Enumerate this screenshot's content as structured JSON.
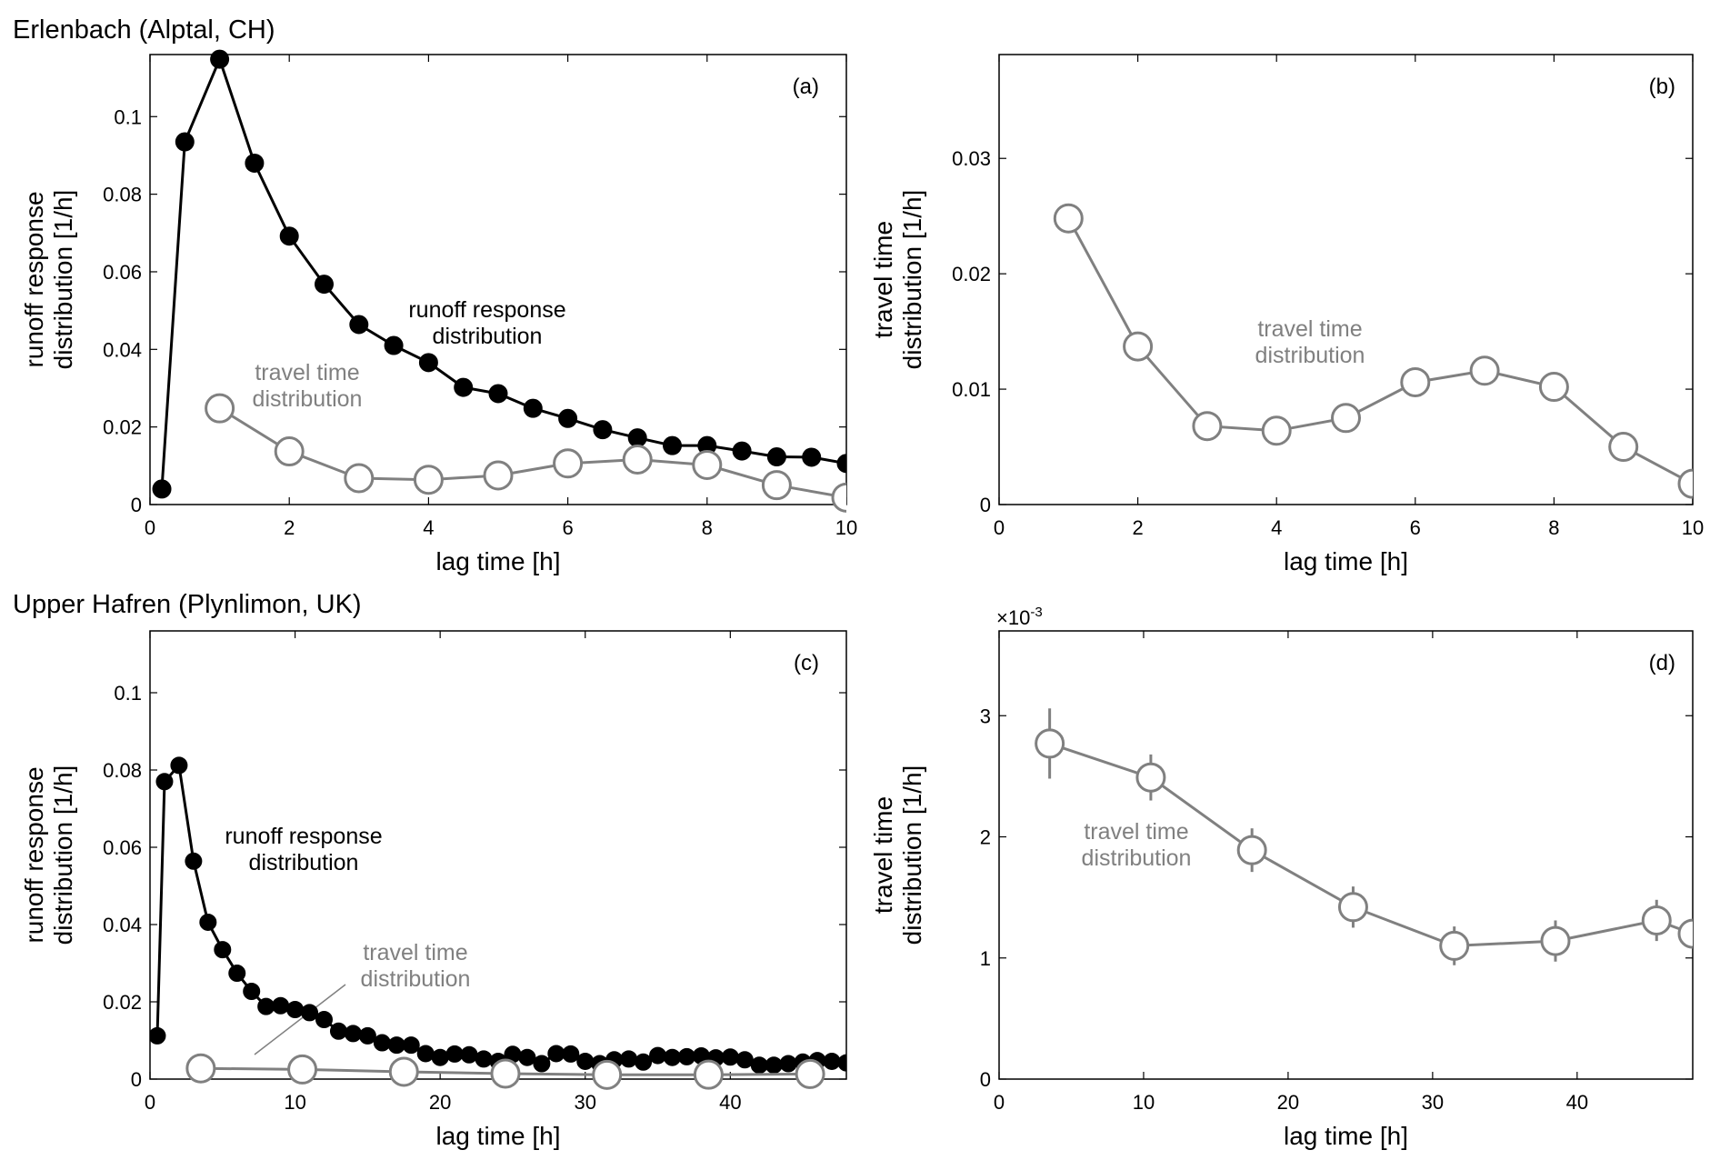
{
  "figure": {
    "section_titles": {
      "top": "Erlenbach (Alptal, CH)",
      "bottom": "Upper Hafren (Plynlimon, UK)"
    },
    "colors": {
      "runoff": "#000000",
      "travel": "#808080",
      "axes": "#000000"
    }
  },
  "chart_data": [
    {
      "id": "a",
      "type": "line",
      "panel_label": "(a)",
      "xlabel": "lag time [h]",
      "ylabel": [
        "runoff response",
        "distribution [1/h]"
      ],
      "xlim": [
        0,
        10
      ],
      "ylim": [
        0,
        0.116
      ],
      "xticks": [
        0,
        2,
        4,
        6,
        8,
        10
      ],
      "yticks": [
        0,
        0.02,
        0.04,
        0.06,
        0.08,
        0.1
      ],
      "ytick_labels": [
        "0",
        "0.02",
        "0.04",
        "0.06",
        "0.08",
        "0.1"
      ],
      "series": [
        {
          "name": "runoff response distribution",
          "style": "filled",
          "x": [
            0.17,
            0.5,
            1.0,
            1.5,
            2.0,
            2.5,
            3.0,
            3.5,
            4.0,
            4.5,
            5.0,
            5.5,
            6.0,
            6.5,
            7.0,
            7.5,
            8.0,
            8.5,
            9.0,
            9.5,
            10.0
          ],
          "y": [
            0.004,
            0.0935,
            0.1148,
            0.088,
            0.0692,
            0.0568,
            0.0464,
            0.041,
            0.0366,
            0.0302,
            0.0286,
            0.0248,
            0.0222,
            0.0193,
            0.0172,
            0.0152,
            0.0152,
            0.0138,
            0.0123,
            0.0122,
            0.0106
          ]
        },
        {
          "name": "travel time distribution",
          "style": "open",
          "x": [
            1,
            2,
            3,
            4,
            5,
            6,
            7,
            8,
            9,
            10
          ],
          "y": [
            0.0248,
            0.0137,
            0.0068,
            0.0064,
            0.0075,
            0.0106,
            0.0116,
            0.0102,
            0.005,
            0.0018
          ]
        }
      ],
      "annotations": [
        {
          "text": [
            "runoff response",
            "distribution"
          ],
          "color": "black"
        },
        {
          "text": [
            "travel time",
            "distribution"
          ],
          "color": "gray"
        }
      ]
    },
    {
      "id": "b",
      "type": "line",
      "panel_label": "(b)",
      "xlabel": "lag time [h]",
      "ylabel": [
        "travel time",
        "distribution [1/h]"
      ],
      "xlim": [
        0,
        10
      ],
      "ylim": [
        0,
        0.039
      ],
      "xticks": [
        0,
        2,
        4,
        6,
        8,
        10
      ],
      "yticks": [
        0,
        0.01,
        0.02,
        0.03
      ],
      "ytick_labels": [
        "0",
        "0.01",
        "0.02",
        "0.03"
      ],
      "series": [
        {
          "name": "travel time distribution",
          "style": "open",
          "x": [
            1,
            2,
            3,
            4,
            5,
            6,
            7,
            8,
            9,
            10
          ],
          "y": [
            0.0248,
            0.0137,
            0.0068,
            0.0064,
            0.0075,
            0.0106,
            0.0116,
            0.0102,
            0.005,
            0.0018
          ]
        }
      ],
      "annotations": [
        {
          "text": [
            "travel time",
            "distribution"
          ],
          "color": "gray"
        }
      ]
    },
    {
      "id": "c",
      "type": "line",
      "panel_label": "(c)",
      "xlabel": "lag time [h]",
      "ylabel": [
        "runoff response",
        "distribution [1/h]"
      ],
      "xlim": [
        0,
        48
      ],
      "ylim": [
        0,
        0.116
      ],
      "xticks": [
        0,
        10,
        20,
        30,
        40
      ],
      "yticks": [
        0,
        0.02,
        0.04,
        0.06,
        0.08,
        0.1
      ],
      "ytick_labels": [
        "0",
        "0.02",
        "0.04",
        "0.06",
        "0.08",
        "0.1"
      ],
      "series": [
        {
          "name": "runoff response distribution",
          "style": "filled",
          "x": [
            0.5,
            1,
            2,
            3,
            4,
            5,
            6,
            7,
            8,
            9,
            10,
            11,
            12,
            13,
            14,
            15,
            16,
            17,
            18,
            19,
            20,
            21,
            22,
            23,
            24,
            25,
            26,
            27,
            28,
            29,
            30,
            31,
            32,
            33,
            34,
            35,
            36,
            37,
            38,
            39,
            40,
            41,
            42,
            43,
            44,
            45,
            46,
            47,
            48
          ],
          "y": [
            0.0112,
            0.077,
            0.0812,
            0.0564,
            0.0406,
            0.0335,
            0.0274,
            0.0227,
            0.0188,
            0.019,
            0.018,
            0.0172,
            0.0154,
            0.0124,
            0.0118,
            0.0112,
            0.0094,
            0.0088,
            0.0088,
            0.0066,
            0.0056,
            0.0065,
            0.0063,
            0.0052,
            0.0046,
            0.0064,
            0.0056,
            0.004,
            0.0066,
            0.0065,
            0.0046,
            0.004,
            0.005,
            0.0052,
            0.0044,
            0.0061,
            0.0056,
            0.0058,
            0.006,
            0.0055,
            0.0057,
            0.005,
            0.0036,
            0.0036,
            0.004,
            0.0044,
            0.0048,
            0.0046,
            0.0042
          ]
        },
        {
          "name": "travel time distribution",
          "style": "open",
          "x": [
            3.5,
            10.5,
            17.5,
            24.5,
            31.5,
            38.5,
            45.5
          ],
          "y": [
            0.00277,
            0.00249,
            0.00189,
            0.00142,
            0.0011,
            0.00114,
            0.00131
          ]
        }
      ],
      "annotations": [
        {
          "text": [
            "runoff response",
            "distribution"
          ],
          "color": "black"
        },
        {
          "text": [
            "travel time",
            "distribution"
          ],
          "color": "gray"
        }
      ]
    },
    {
      "id": "d",
      "type": "line",
      "panel_label": "(d)",
      "xlabel": "lag time [h]",
      "ylabel": [
        "travel time",
        "distribution [1/h]"
      ],
      "xlim": [
        0,
        48
      ],
      "ylim": [
        0,
        0.0037
      ],
      "xticks": [
        0,
        10,
        20,
        30,
        40
      ],
      "yticks": [
        0,
        0.001,
        0.002,
        0.003
      ],
      "ytick_labels": [
        "0",
        "1",
        "2",
        "3"
      ],
      "exponent_base": "×10",
      "exponent_power": "-3",
      "series": [
        {
          "name": "travel time distribution",
          "style": "open",
          "x": [
            3.5,
            10.5,
            17.5,
            24.5,
            31.5,
            38.5,
            45.5,
            48
          ],
          "y": [
            0.00277,
            0.00249,
            0.00189,
            0.00142,
            0.0011,
            0.00114,
            0.00131,
            0.0012
          ],
          "err": [
            0.00029,
            0.00019,
            0.00018,
            0.00017,
            0.00016,
            0.00017,
            0.00017,
            0
          ]
        }
      ],
      "annotations": [
        {
          "text": [
            "travel time",
            "distribution"
          ],
          "color": "gray"
        }
      ]
    }
  ]
}
